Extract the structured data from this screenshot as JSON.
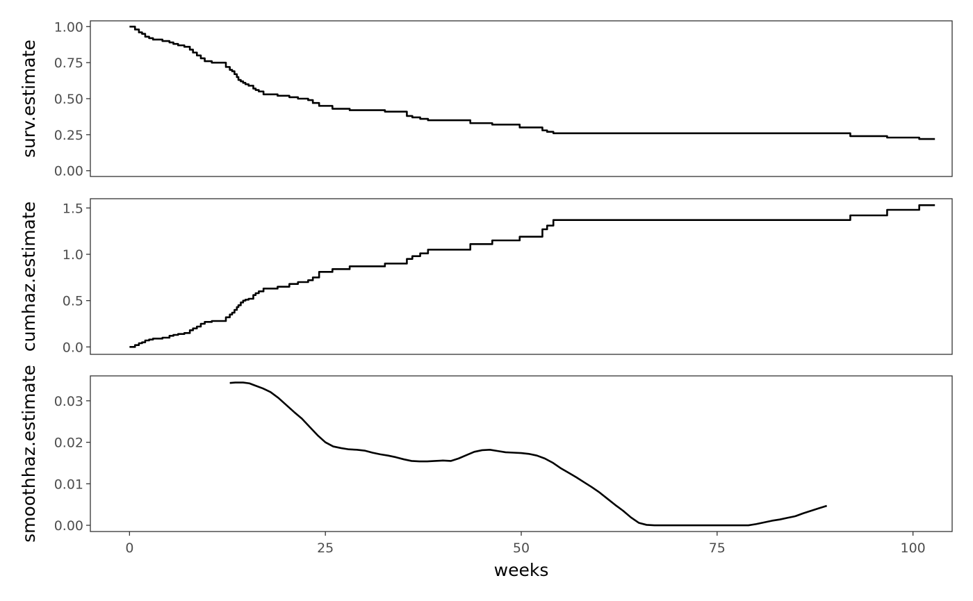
{
  "chart_data": [
    {
      "type": "line",
      "step": true,
      "ylabel": "surv.estimate",
      "xlim": [
        -5,
        105
      ],
      "ylim": [
        -0.04,
        1.04
      ],
      "y_ticks": [
        0,
        0.25,
        0.5,
        0.75,
        1
      ],
      "y_tick_labels": [
        "0.00",
        "0.25",
        "0.50",
        "0.75",
        "1.00"
      ],
      "show_x_ticks": false,
      "series": [
        {
          "color": "#000000",
          "x": [
            0,
            0.7,
            1.2,
            1.6,
            2,
            2.5,
            3,
            3.6,
            4.2,
            5.1,
            5.6,
            6.2,
            7,
            7.7,
            8.1,
            8.6,
            9.1,
            9.6,
            10.5,
            11,
            12.3,
            12.8,
            13.1,
            13.4,
            13.7,
            13.9,
            14.2,
            14.5,
            14.8,
            15.2,
            15.8,
            16.1,
            16.5,
            17.1,
            18.9,
            20.4,
            21.5,
            22.8,
            23.4,
            24.2,
            25.9,
            28.1,
            32.6,
            35.4,
            36.1,
            37.1,
            38.1,
            43.5,
            46.3,
            49.8,
            52.7,
            53.3,
            54.1,
            92,
            96.7,
            100.8,
            102.8
          ],
          "y": [
            1,
            0.98,
            0.96,
            0.95,
            0.93,
            0.92,
            0.91,
            0.91,
            0.9,
            0.89,
            0.88,
            0.87,
            0.86,
            0.84,
            0.82,
            0.8,
            0.78,
            0.76,
            0.75,
            0.75,
            0.72,
            0.7,
            0.69,
            0.67,
            0.65,
            0.63,
            0.62,
            0.61,
            0.6,
            0.59,
            0.57,
            0.56,
            0.55,
            0.53,
            0.52,
            0.51,
            0.5,
            0.49,
            0.47,
            0.45,
            0.43,
            0.42,
            0.41,
            0.38,
            0.37,
            0.36,
            0.35,
            0.33,
            0.32,
            0.3,
            0.28,
            0.27,
            0.26,
            0.24,
            0.23,
            0.22,
            0.22
          ]
        }
      ]
    },
    {
      "type": "line",
      "step": true,
      "ylabel": "cumhaz.estimate",
      "xlim": [
        -5,
        105
      ],
      "ylim": [
        -0.08,
        1.6
      ],
      "y_ticks": [
        0,
        0.5,
        1,
        1.5
      ],
      "y_tick_labels": [
        "0.0",
        "0.5",
        "1.0",
        "1.5"
      ],
      "show_x_ticks": false,
      "series": [
        {
          "color": "#000000",
          "x": [
            0,
            0.7,
            1.2,
            1.6,
            2,
            2.5,
            3,
            3.6,
            4.2,
            5.1,
            5.6,
            6.2,
            7,
            7.7,
            8.1,
            8.6,
            9.1,
            9.6,
            10.5,
            11,
            12.3,
            12.8,
            13.1,
            13.4,
            13.7,
            13.9,
            14.2,
            14.5,
            14.8,
            15.2,
            15.8,
            16.1,
            16.5,
            17.1,
            18.9,
            20.4,
            21.5,
            22.8,
            23.4,
            24.2,
            25.9,
            28.1,
            32.6,
            35.4,
            36.1,
            37.1,
            38.1,
            43.5,
            46.3,
            49.8,
            52.7,
            53.3,
            54.1,
            92,
            96.7,
            100.8,
            102.8
          ],
          "y": [
            0,
            0.02,
            0.04,
            0.05,
            0.07,
            0.08,
            0.09,
            0.09,
            0.1,
            0.12,
            0.13,
            0.14,
            0.15,
            0.18,
            0.2,
            0.22,
            0.25,
            0.27,
            0.28,
            0.28,
            0.32,
            0.35,
            0.37,
            0.4,
            0.43,
            0.45,
            0.48,
            0.5,
            0.51,
            0.52,
            0.56,
            0.58,
            0.6,
            0.63,
            0.65,
            0.68,
            0.7,
            0.72,
            0.75,
            0.81,
            0.84,
            0.87,
            0.9,
            0.95,
            0.98,
            1.01,
            1.05,
            1.11,
            1.15,
            1.19,
            1.27,
            1.31,
            1.37,
            1.42,
            1.48,
            1.53,
            1.53
          ]
        }
      ]
    },
    {
      "type": "line",
      "step": false,
      "ylabel": "smoothhaz.estimate",
      "xlabel": "weeks",
      "xlim": [
        -5,
        105
      ],
      "ylim": [
        -0.0015,
        0.036
      ],
      "y_ticks": [
        0,
        0.01,
        0.02,
        0.03
      ],
      "y_tick_labels": [
        "0.00",
        "0.01",
        "0.02",
        "0.03"
      ],
      "x_ticks": [
        0,
        25,
        50,
        75,
        100
      ],
      "x_tick_labels": [
        "0",
        "25",
        "50",
        "75",
        "100"
      ],
      "show_x_ticks": true,
      "series": [
        {
          "color": "#000000",
          "x": [
            12.8,
            13.5,
            14.5,
            15.3,
            16,
            17,
            18,
            19,
            20,
            21,
            22,
            23,
            24,
            25,
            26,
            27,
            28,
            29,
            30,
            31,
            32,
            33,
            34,
            35,
            36,
            37,
            38,
            39,
            40,
            41,
            42,
            43,
            44,
            45,
            46,
            47,
            48,
            49,
            50,
            51,
            52,
            53,
            54,
            55,
            56,
            57,
            58,
            59,
            60,
            61,
            62,
            63,
            64,
            65,
            66,
            67,
            68,
            70,
            73,
            76,
            79,
            80,
            81,
            82,
            83,
            84,
            85,
            86,
            87,
            88,
            89
          ],
          "y": [
            0.0343,
            0.0344,
            0.0344,
            0.0342,
            0.0337,
            0.033,
            0.0321,
            0.0307,
            0.029,
            0.0273,
            0.0257,
            0.0237,
            0.0217,
            0.02,
            0.019,
            0.0186,
            0.0183,
            0.0182,
            0.018,
            0.0175,
            0.0171,
            0.0168,
            0.0164,
            0.0159,
            0.0155,
            0.0154,
            0.0154,
            0.0155,
            0.0156,
            0.0155,
            0.0161,
            0.0169,
            0.0177,
            0.0181,
            0.0182,
            0.0179,
            0.0176,
            0.0175,
            0.0174,
            0.0172,
            0.0168,
            0.0161,
            0.0151,
            0.0138,
            0.0127,
            0.0116,
            0.0104,
            0.0092,
            0.0079,
            0.0064,
            0.0049,
            0.0035,
            0.0019,
            0.0006,
            0.0001,
            0,
            0,
            0,
            0,
            0,
            0,
            0.0003,
            0.0007,
            0.0011,
            0.0014,
            0.0018,
            0.0022,
            0.0029,
            0.0035,
            0.0041,
            0.0047
          ]
        }
      ]
    }
  ]
}
